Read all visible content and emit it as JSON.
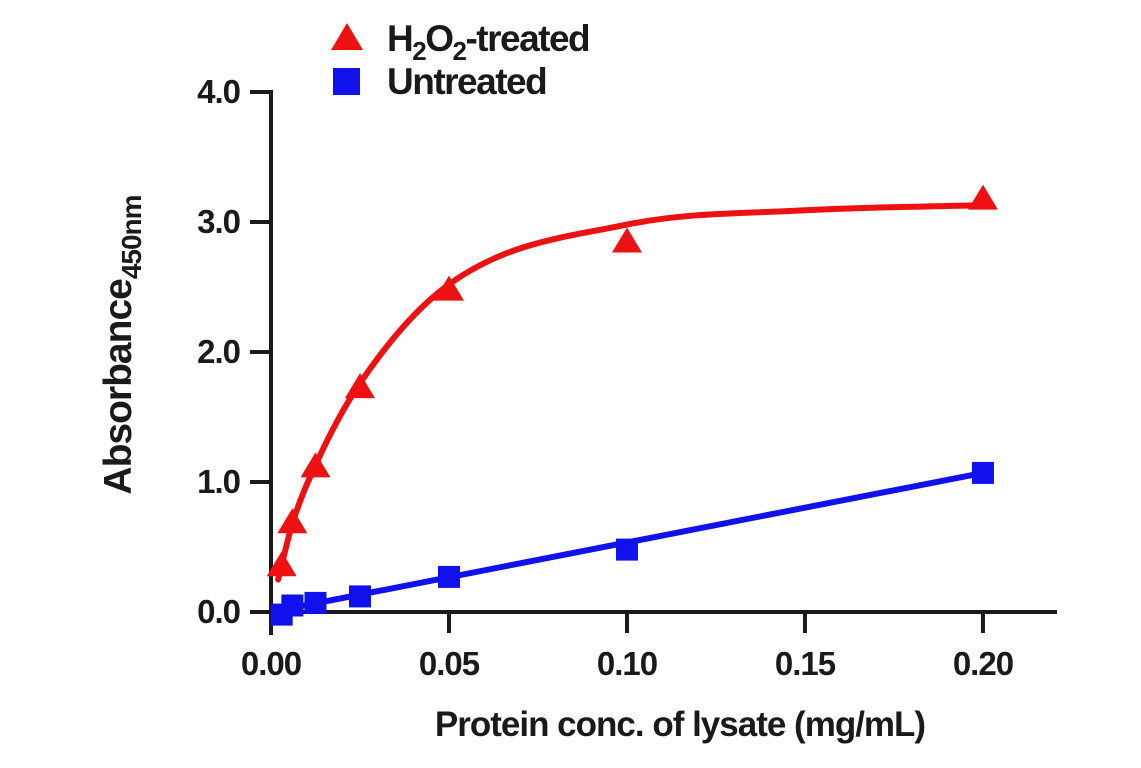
{
  "figure": {
    "background": "#ffffff",
    "text_color": "#1a1a1a",
    "axis_color": "#1a1a1a"
  },
  "legend": {
    "position": "top-left, above plot area",
    "items": [
      {
        "text": "H2O2-treated",
        "segments": [
          {
            "t": "H"
          },
          {
            "t": "2",
            "sub": true
          },
          {
            "t": "O"
          },
          {
            "t": "2",
            "sub": true
          },
          {
            "t": "-treated"
          }
        ],
        "marker": "triangle",
        "color": "#ee1111"
      },
      {
        "text": "Untreated",
        "segments": [
          {
            "t": "Untreated"
          }
        ],
        "marker": "square",
        "color": "#1111ee"
      }
    ]
  },
  "chart_data": {
    "type": "scatter",
    "title": "",
    "x_label": "Protein conc. of lysate (mg/mL)",
    "y_label": "Absorbance",
    "y_label_subscript": "450nm",
    "x": [
      0.003,
      0.006,
      0.0125,
      0.025,
      0.05,
      0.1,
      0.2
    ],
    "series": [
      {
        "name": "H2O2-treated",
        "color": "#ee1111",
        "marker": "triangle",
        "values": [
          0.36,
          0.69,
          1.12,
          1.73,
          2.48,
          2.85,
          3.18
        ],
        "fit": "saturating dose-response curve",
        "fit_curve": {
          "x": [
            0.002,
            0.006,
            0.0125,
            0.025,
            0.05,
            0.1,
            0.15,
            0.2
          ],
          "y": [
            0.25,
            0.68,
            1.13,
            1.76,
            2.52,
            2.98,
            3.09,
            3.13
          ]
        }
      },
      {
        "name": "Untreated",
        "color": "#1111ee",
        "marker": "square",
        "values": [
          -0.02,
          0.05,
          0.07,
          0.12,
          0.27,
          0.48,
          1.07
        ],
        "fit": "linear",
        "fit_line": {
          "x": [
            0.0,
            0.2
          ],
          "y": [
            0.0,
            1.07
          ]
        }
      }
    ],
    "x_ticks": [
      0,
      0.05,
      0.1,
      0.15,
      0.2
    ],
    "x_tick_labels": [
      "0.00",
      "0.05",
      "0.10",
      "0.15",
      "0.20"
    ],
    "y_ticks": [
      0,
      1,
      2,
      3,
      4
    ],
    "y_tick_labels": [
      "0.0",
      "1.0",
      "2.0",
      "3.0",
      "4.0"
    ],
    "xlim": [
      0,
      0.2208
    ],
    "ylim": [
      0,
      4
    ],
    "grid": false,
    "legend_position": "top-left"
  }
}
